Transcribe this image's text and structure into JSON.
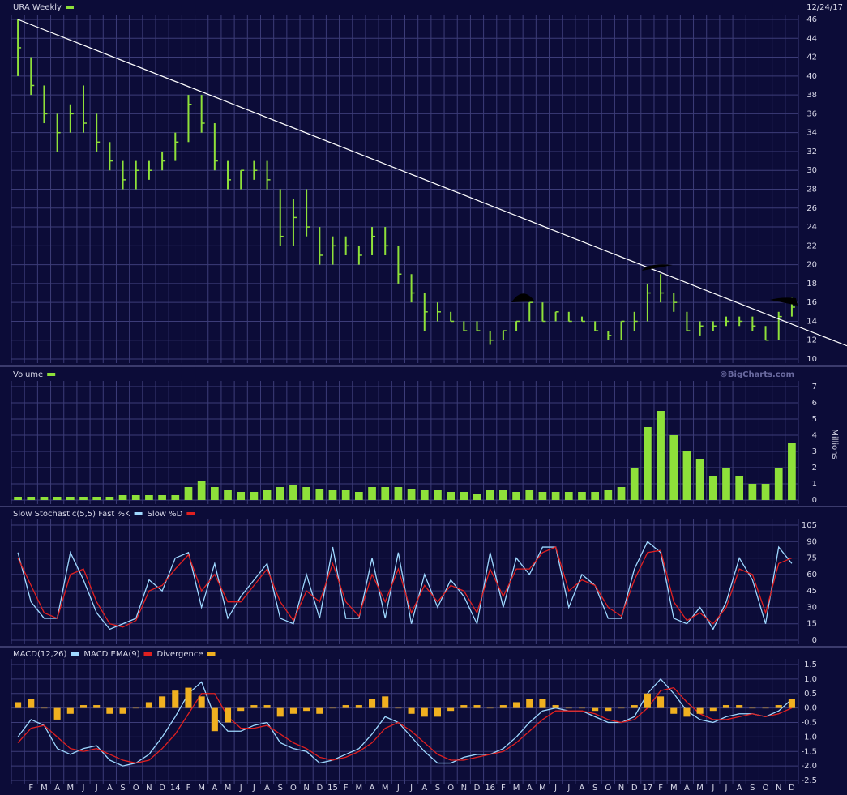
{
  "chart_data": [
    {
      "type": "ohlc",
      "title": "URA Weekly",
      "date": "12/24/17",
      "color": "#8ee03a",
      "high": [
        46,
        42,
        39,
        36,
        37,
        39,
        36,
        33,
        31,
        31,
        31,
        32,
        34,
        38,
        38,
        35,
        31,
        30,
        31,
        31,
        28,
        27,
        28,
        24,
        23,
        23,
        22,
        24,
        24,
        22,
        19,
        17,
        16,
        15,
        14,
        14,
        13,
        13,
        14,
        16,
        16,
        15,
        15,
        14.5,
        14,
        13,
        14,
        15,
        18,
        19,
        17,
        15,
        14,
        14,
        14.5,
        14.5,
        14.5,
        13.5,
        15,
        16.5
      ],
      "low": [
        40,
        38,
        35,
        32,
        34,
        34,
        32,
        30,
        28,
        28,
        29,
        30,
        31,
        33,
        34,
        30,
        28,
        28,
        29,
        28,
        22,
        22,
        23,
        20,
        20,
        21,
        20,
        21,
        21,
        18,
        16,
        13,
        14,
        14,
        13,
        13,
        11.5,
        12,
        13,
        14,
        14,
        14,
        14,
        14,
        13,
        12,
        12,
        13,
        14,
        16,
        15,
        13,
        12.5,
        13,
        13.5,
        13.5,
        13,
        12,
        12,
        14.5
      ],
      "close": [
        43,
        39,
        36,
        34,
        36,
        35,
        33,
        31,
        29,
        30,
        30,
        31,
        33,
        37,
        35,
        31,
        29,
        30,
        30,
        29,
        23,
        25,
        24,
        21,
        22,
        22,
        21,
        23,
        22,
        19,
        17,
        15,
        15,
        14,
        13,
        13,
        12,
        13,
        14,
        16,
        14,
        15,
        14,
        14,
        13,
        12.5,
        14,
        14,
        17,
        17,
        16,
        13,
        13.5,
        13.5,
        14,
        14,
        13.5,
        12,
        14.5,
        15.5
      ],
      "trendline": [
        46,
        13.7
      ],
      "ylim": [
        10,
        46
      ],
      "yticks": [
        10,
        12,
        14,
        16,
        18,
        20,
        22,
        24,
        26,
        28,
        30,
        32,
        34,
        36,
        38,
        40,
        42,
        44,
        46
      ],
      "grid": true
    },
    {
      "type": "bar",
      "title": "Volume",
      "credit": "©BigCharts.com",
      "y_label": "Millions",
      "color": "#8ee03a",
      "values": [
        0.2,
        0.2,
        0.2,
        0.2,
        0.2,
        0.2,
        0.2,
        0.2,
        0.3,
        0.3,
        0.3,
        0.3,
        0.3,
        0.8,
        1.2,
        0.8,
        0.6,
        0.5,
        0.5,
        0.6,
        0.8,
        0.9,
        0.8,
        0.7,
        0.6,
        0.6,
        0.5,
        0.8,
        0.8,
        0.8,
        0.7,
        0.6,
        0.6,
        0.5,
        0.5,
        0.4,
        0.6,
        0.6,
        0.5,
        0.6,
        0.5,
        0.5,
        0.5,
        0.5,
        0.5,
        0.6,
        0.8,
        2.0,
        4.5,
        5.5,
        4,
        3,
        2.5,
        1.5,
        2,
        1.5,
        1,
        1,
        2,
        3.5
      ],
      "ylim": [
        0,
        7
      ],
      "yticks": [
        0,
        1,
        2,
        3,
        4,
        5,
        6,
        7
      ],
      "grid": true
    },
    {
      "type": "line",
      "series": [
        {
          "name": "Slow Stochastic(5,5) Fast %K",
          "color": "#9fd8ff",
          "values": [
            80,
            35,
            20,
            20,
            80,
            55,
            25,
            10,
            15,
            20,
            55,
            45,
            75,
            80,
            30,
            70,
            20,
            40,
            55,
            70,
            20,
            15,
            60,
            20,
            85,
            20,
            20,
            75,
            20,
            80,
            15,
            60,
            30,
            55,
            40,
            15,
            80,
            30,
            75,
            60,
            85,
            85,
            30,
            60,
            50,
            20,
            20,
            65,
            90,
            80,
            20,
            15,
            30,
            10,
            35,
            75,
            55,
            15,
            85,
            70
          ]
        },
        {
          "name": "Slow %D",
          "color": "#e02020",
          "values": [
            75,
            50,
            25,
            20,
            60,
            65,
            35,
            15,
            12,
            18,
            45,
            50,
            65,
            78,
            45,
            60,
            35,
            35,
            50,
            65,
            35,
            18,
            45,
            35,
            70,
            35,
            22,
            60,
            35,
            65,
            25,
            50,
            35,
            50,
            45,
            25,
            65,
            40,
            65,
            65,
            80,
            85,
            45,
            55,
            50,
            30,
            22,
            55,
            80,
            82,
            35,
            18,
            25,
            15,
            30,
            65,
            60,
            25,
            70,
            75
          ]
        }
      ],
      "ylim": [
        0,
        105
      ],
      "yticks": [
        0,
        15,
        30,
        45,
        60,
        75,
        90,
        105
      ],
      "grid": true
    },
    {
      "type": "macd",
      "title": "MACD(12,26)",
      "categories": [
        null,
        "F",
        "M",
        "A",
        "M",
        "J",
        "J",
        "A",
        "S",
        "O",
        "N",
        "D",
        "14",
        "F",
        "M",
        "A",
        "M",
        "J",
        "J",
        "A",
        "S",
        "O",
        "N",
        "D",
        "15",
        "F",
        "M",
        "A",
        "M",
        "J",
        "J",
        "A",
        "S",
        "O",
        "N",
        "D",
        "16",
        "F",
        "M",
        "A",
        "M",
        "J",
        "J",
        "A",
        "S",
        "O",
        "N",
        "D",
        "17",
        "F",
        "M",
        "A",
        "M",
        "J",
        "J",
        "A",
        "S",
        "O",
        "N",
        "D"
      ],
      "series": [
        {
          "name": "MACD(12,26)",
          "type": "line",
          "color": "#9fd8ff",
          "values": [
            -1.0,
            -0.4,
            -0.6,
            -1.4,
            -1.6,
            -1.4,
            -1.3,
            -1.8,
            -2.0,
            -1.9,
            -1.6,
            -1.0,
            -0.3,
            0.5,
            0.9,
            -0.3,
            -0.8,
            -0.8,
            -0.6,
            -0.5,
            -1.2,
            -1.4,
            -1.5,
            -1.9,
            -1.8,
            -1.6,
            -1.4,
            -0.9,
            -0.3,
            -0.5,
            -1.0,
            -1.5,
            -1.9,
            -1.9,
            -1.7,
            -1.6,
            -1.6,
            -1.4,
            -1.0,
            -0.5,
            -0.1,
            0.0,
            -0.1,
            -0.1,
            -0.3,
            -0.5,
            -0.5,
            -0.3,
            0.5,
            1.0,
            0.5,
            -0.1,
            -0.4,
            -0.5,
            -0.3,
            -0.2,
            -0.2,
            -0.3,
            -0.1,
            0.3
          ]
        },
        {
          "name": "MACD EMA(9)",
          "type": "line",
          "color": "#e02020",
          "values": [
            -1.2,
            -0.7,
            -0.6,
            -1.0,
            -1.4,
            -1.5,
            -1.4,
            -1.6,
            -1.8,
            -1.9,
            -1.8,
            -1.4,
            -0.9,
            -0.2,
            0.5,
            0.5,
            -0.3,
            -0.7,
            -0.7,
            -0.6,
            -0.9,
            -1.2,
            -1.4,
            -1.7,
            -1.8,
            -1.7,
            -1.5,
            -1.2,
            -0.7,
            -0.5,
            -0.8,
            -1.2,
            -1.6,
            -1.8,
            -1.8,
            -1.7,
            -1.6,
            -1.5,
            -1.2,
            -0.8,
            -0.4,
            -0.1,
            -0.1,
            -0.1,
            -0.2,
            -0.4,
            -0.5,
            -0.4,
            0.0,
            0.6,
            0.7,
            0.2,
            -0.2,
            -0.4,
            -0.4,
            -0.3,
            -0.2,
            -0.3,
            -0.2,
            0.0
          ]
        },
        {
          "name": "Divergence",
          "type": "bar",
          "color": "#f0b020",
          "values": [
            0.2,
            0.3,
            0.0,
            -0.4,
            -0.2,
            0.1,
            0.1,
            -0.2,
            -0.2,
            0.0,
            0.2,
            0.4,
            0.6,
            0.7,
            0.4,
            -0.8,
            -0.5,
            -0.1,
            0.1,
            0.1,
            -0.3,
            -0.2,
            -0.1,
            -0.2,
            0.0,
            0.1,
            0.1,
            0.3,
            0.4,
            0.0,
            -0.2,
            -0.3,
            -0.3,
            -0.1,
            0.1,
            0.1,
            0.0,
            0.1,
            0.2,
            0.3,
            0.3,
            0.1,
            0.0,
            0.0,
            -0.1,
            -0.1,
            0.0,
            0.1,
            0.5,
            0.4,
            -0.2,
            -0.3,
            -0.2,
            -0.1,
            0.1,
            0.1,
            0.0,
            0.0,
            0.1,
            0.3
          ]
        }
      ],
      "ylim": [
        -2.5,
        1.5
      ],
      "yticks": [
        -2.5,
        {
          "value": -2.0,
          "label": "-2.0"
        },
        -1.5,
        {
          "value": -1.0,
          "label": "-1.0"
        },
        -0.5,
        {
          "value": 0.0,
          "label": "0.0"
        },
        0.5,
        {
          "value": 1.0,
          "label": "1.0"
        },
        1.5
      ],
      "grid": true
    }
  ]
}
